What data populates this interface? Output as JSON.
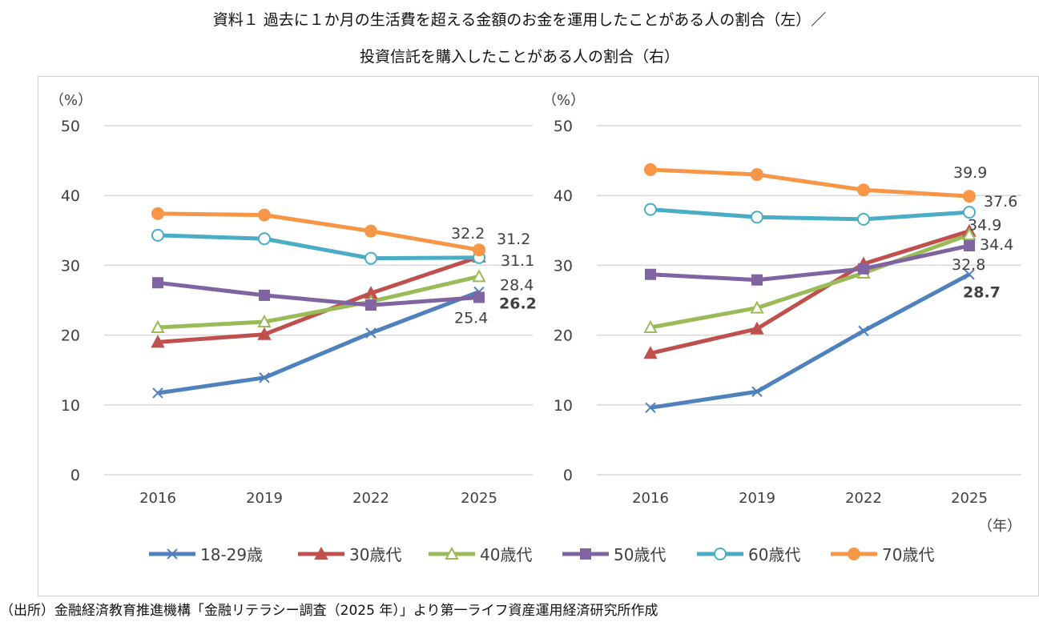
{
  "title_line1": "資料１ 過去に１か月の生活費を超える金額のお金を運用したことがある人の割合（左）／",
  "title_line2": "投資信託を購入したことがある人の割合（右）",
  "source": "（出所）金融経済教育推進機構「金融リテラシー調査（2025 年）」より第一ライフ資産運用経済研究所作成",
  "x_unit": "（年）",
  "chart_data": [
    {
      "type": "line",
      "ylabel": "（%）",
      "ylim": [
        0,
        50
      ],
      "yticks": [
        0,
        10,
        20,
        30,
        40,
        50
      ],
      "grid": true,
      "legend": "bottom",
      "categories": [
        "2016",
        "2019",
        "2022",
        "2025"
      ],
      "series": [
        {
          "name": "18-29歳",
          "color": "#4f81bd",
          "marker": "x",
          "values": [
            11.7,
            13.9,
            20.3,
            26.2
          ],
          "end_label": "26.2",
          "bold": true
        },
        {
          "name": "30歳代",
          "color": "#c0504d",
          "marker": "triangle",
          "values": [
            19.0,
            20.1,
            26.0,
            31.2
          ],
          "end_label": "31.2"
        },
        {
          "name": "40歳代",
          "color": "#9bbb59",
          "marker": "triangle-open",
          "values": [
            21.1,
            21.9,
            24.8,
            28.4
          ],
          "end_label": "28.4"
        },
        {
          "name": "50歳代",
          "color": "#8064a2",
          "marker": "square",
          "values": [
            27.5,
            25.7,
            24.3,
            25.4
          ],
          "end_label": "25.4"
        },
        {
          "name": "60歳代",
          "color": "#4bacc6",
          "marker": "circle-open",
          "values": [
            34.3,
            33.8,
            31.0,
            31.1
          ],
          "end_label": "31.1"
        },
        {
          "name": "70歳代",
          "color": "#f79646",
          "marker": "circle",
          "values": [
            37.4,
            37.2,
            34.9,
            32.2
          ],
          "end_label": "32.2"
        }
      ]
    },
    {
      "type": "line",
      "ylabel": "（%）",
      "xlabel": "（年）",
      "ylim": [
        0,
        50
      ],
      "yticks": [
        0,
        10,
        20,
        30,
        40,
        50
      ],
      "grid": true,
      "legend": "bottom",
      "categories": [
        "2016",
        "2019",
        "2022",
        "2025"
      ],
      "series": [
        {
          "name": "18-29歳",
          "color": "#4f81bd",
          "marker": "x",
          "values": [
            9.6,
            11.9,
            20.6,
            28.7
          ],
          "end_label": "28.7",
          "bold": true
        },
        {
          "name": "30歳代",
          "color": "#c0504d",
          "marker": "triangle",
          "values": [
            17.4,
            20.9,
            30.2,
            34.9
          ],
          "end_label": "34.9"
        },
        {
          "name": "40歳代",
          "color": "#9bbb59",
          "marker": "triangle-open",
          "values": [
            21.1,
            23.9,
            28.9,
            34.4
          ],
          "end_label": "34.4"
        },
        {
          "name": "50歳代",
          "color": "#8064a2",
          "marker": "square",
          "values": [
            28.7,
            27.9,
            29.5,
            32.8
          ],
          "end_label": "32.8"
        },
        {
          "name": "60歳代",
          "color": "#4bacc6",
          "marker": "circle-open",
          "values": [
            38.0,
            36.9,
            36.6,
            37.6
          ],
          "end_label": "37.6"
        },
        {
          "name": "70歳代",
          "color": "#f79646",
          "marker": "circle",
          "values": [
            43.7,
            43.0,
            40.8,
            39.9
          ],
          "end_label": "39.9"
        }
      ]
    }
  ]
}
